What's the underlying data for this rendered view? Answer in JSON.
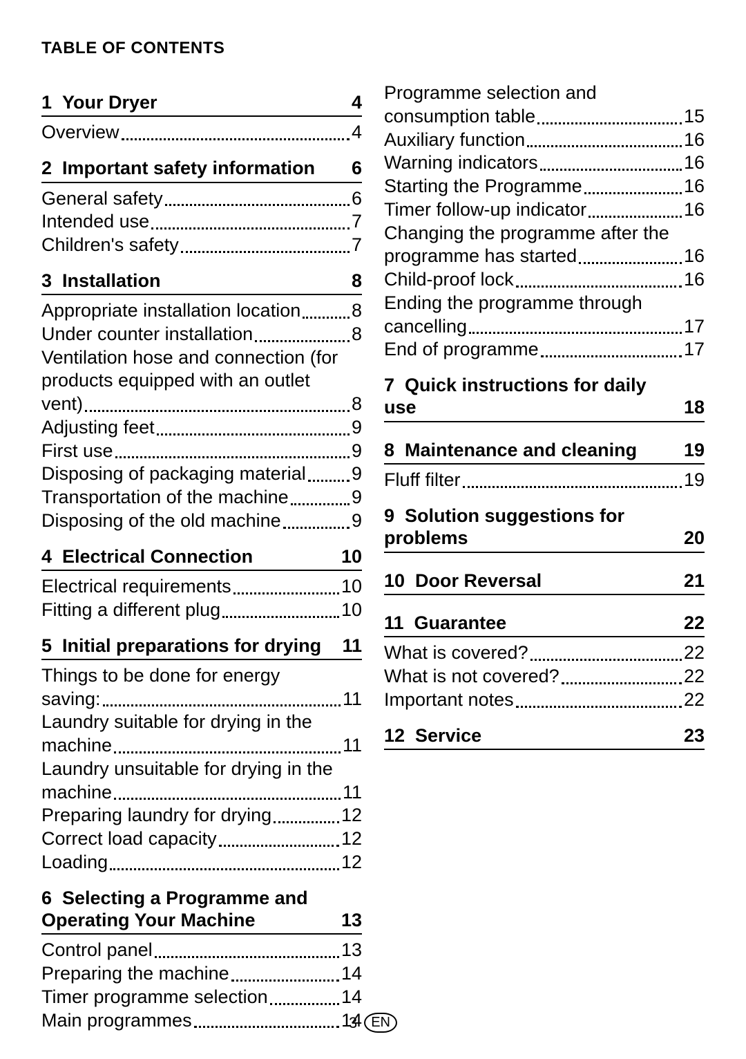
{
  "title": "TABLE OF CONTENTS",
  "footer": {
    "page": "3",
    "lang": "EN"
  },
  "left": {
    "sections": [
      {
        "num": "1",
        "title": "Your Dryer",
        "page": "4",
        "entries": [
          {
            "label": "Overview",
            "page": "4"
          }
        ]
      },
      {
        "num": "2",
        "title": "Important safety information",
        "page": "6",
        "entries": [
          {
            "label": "General safety",
            "page": "6"
          },
          {
            "label": "Intended use",
            "page": "7"
          },
          {
            "label": "Children's safety",
            "page": "7"
          }
        ]
      },
      {
        "num": "3",
        "title": "Installation",
        "page": "8",
        "entries": [
          {
            "label": "Appropriate installation location",
            "page": "8"
          },
          {
            "label": "Under counter installation",
            "page": "8"
          },
          {
            "pre": "Ventilation hose and connection (for products equipped with an outlet",
            "last": "vent)",
            "page": "8"
          },
          {
            "label": "Adjusting feet",
            "page": "9"
          },
          {
            "label": "First use",
            "page": "9"
          },
          {
            "label": "Disposing of packaging material",
            "page": "9"
          },
          {
            "label": "Transportation of the machine",
            "page": "9"
          },
          {
            "label": "Disposing of the old machine",
            "page": "9"
          }
        ]
      },
      {
        "num": "4",
        "title": "Electrical Connection",
        "page": "10",
        "entries": [
          {
            "label": "Electrical requirements",
            "page": "10"
          },
          {
            "label": "Fitting a different plug",
            "page": "10"
          }
        ]
      },
      {
        "num": "5",
        "title": "Initial preparations for drying",
        "page": "11",
        "entries": [
          {
            "pre": "Things to be done for energy",
            "last": "saving:",
            "page": "11"
          },
          {
            "pre": "Laundry suitable for drying in the",
            "last": "machine",
            "page": "11"
          },
          {
            "pre": "Laundry unsuitable for drying in the",
            "last": "machine",
            "page": "11"
          },
          {
            "label": "Preparing laundry for drying",
            "page": "12"
          },
          {
            "label": "Correct load capacity",
            "page": "12"
          },
          {
            "label": "Loading",
            "page": "12"
          }
        ]
      },
      {
        "num": "6",
        "title": "Selecting a Programme and Operating Your Machine",
        "page": "13",
        "entries": [
          {
            "label": "Control panel",
            "page": "13"
          },
          {
            "label": "Preparing the machine",
            "page": "14"
          },
          {
            "label": "Timer programme selection",
            "page": "14"
          },
          {
            "label": "Main programmes",
            "page": "14"
          }
        ]
      }
    ]
  },
  "right": {
    "continuation": [
      {
        "pre": "Programme selection and",
        "last": "consumption table",
        "page": "15"
      },
      {
        "label": "Auxiliary function",
        "page": "16"
      },
      {
        "label": "Warning indicators",
        "page": "16"
      },
      {
        "label": "Starting the Programme",
        "page": "16"
      },
      {
        "label": "Timer follow-up indicator",
        "page": "16"
      },
      {
        "pre": "Changing the programme after the",
        "last": "programme has started",
        "page": "16"
      },
      {
        "label": "Child-proof lock",
        "page": "16"
      },
      {
        "pre": "Ending the programme through",
        "last": "cancelling",
        "page": "17"
      },
      {
        "label": "End of programme",
        "page": "17"
      }
    ],
    "sections": [
      {
        "num": "7",
        "title": "Quick instructions for daily use",
        "page": "18",
        "entries": []
      },
      {
        "num": "8",
        "title": "Maintenance and cleaning",
        "page": "19",
        "entries": [
          {
            "label": "Fluff filter",
            "page": "19"
          }
        ]
      },
      {
        "num": "9",
        "title": "Solution suggestions for problems",
        "page": "20",
        "entries": []
      },
      {
        "num": "10",
        "title": "Door Reversal",
        "page": "21",
        "entries": []
      },
      {
        "num": "11",
        "title": "Guarantee",
        "page": "22",
        "entries": [
          {
            "label": "What is covered?",
            "page": "22"
          },
          {
            "label": "What is not covered?",
            "page": "22"
          },
          {
            "label": "Important notes",
            "page": "22"
          }
        ]
      },
      {
        "num": "12",
        "title": "Service",
        "page": "23",
        "entries": []
      }
    ]
  }
}
